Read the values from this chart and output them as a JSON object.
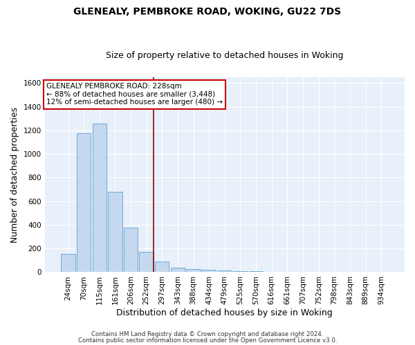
{
  "title": "GLENEALY, PEMBROKE ROAD, WOKING, GU22 7DS",
  "subtitle": "Size of property relative to detached houses in Woking",
  "xlabel": "Distribution of detached houses by size in Woking",
  "ylabel": "Number of detached properties",
  "footnote1": "Contains HM Land Registry data © Crown copyright and database right 2024.",
  "footnote2": "Contains public sector information licensed under the Open Government Licence v3.0.",
  "bar_labels": [
    "24sqm",
    "70sqm",
    "115sqm",
    "161sqm",
    "206sqm",
    "252sqm",
    "297sqm",
    "343sqm",
    "388sqm",
    "434sqm",
    "479sqm",
    "525sqm",
    "570sqm",
    "616sqm",
    "661sqm",
    "707sqm",
    "752sqm",
    "798sqm",
    "843sqm",
    "889sqm",
    "934sqm"
  ],
  "bar_values": [
    155,
    1175,
    1255,
    678,
    375,
    170,
    90,
    38,
    28,
    18,
    15,
    10,
    8,
    0,
    0,
    0,
    0,
    0,
    0,
    0,
    0
  ],
  "bar_color": "#c5d8ef",
  "bar_edgecolor": "#6aaad4",
  "vline_x": 5.45,
  "vline_color": "#8b0000",
  "annotation_title": "GLENEALY PEMBROKE ROAD: 228sqm",
  "annotation_line2": "← 88% of detached houses are smaller (3,448)",
  "annotation_line3": "12% of semi-detached houses are larger (480) →",
  "annotation_box_color": "#ffffff",
  "annotation_box_edgecolor": "#cc0000",
  "ylim": [
    0,
    1650
  ],
  "yticks": [
    0,
    200,
    400,
    600,
    800,
    1000,
    1200,
    1400,
    1600
  ],
  "background_color": "#e8f0fa",
  "grid_color": "#ffffff",
  "title_fontsize": 10,
  "subtitle_fontsize": 9,
  "axis_label_fontsize": 9,
  "tick_fontsize": 7.5,
  "annotation_fontsize": 7.5
}
